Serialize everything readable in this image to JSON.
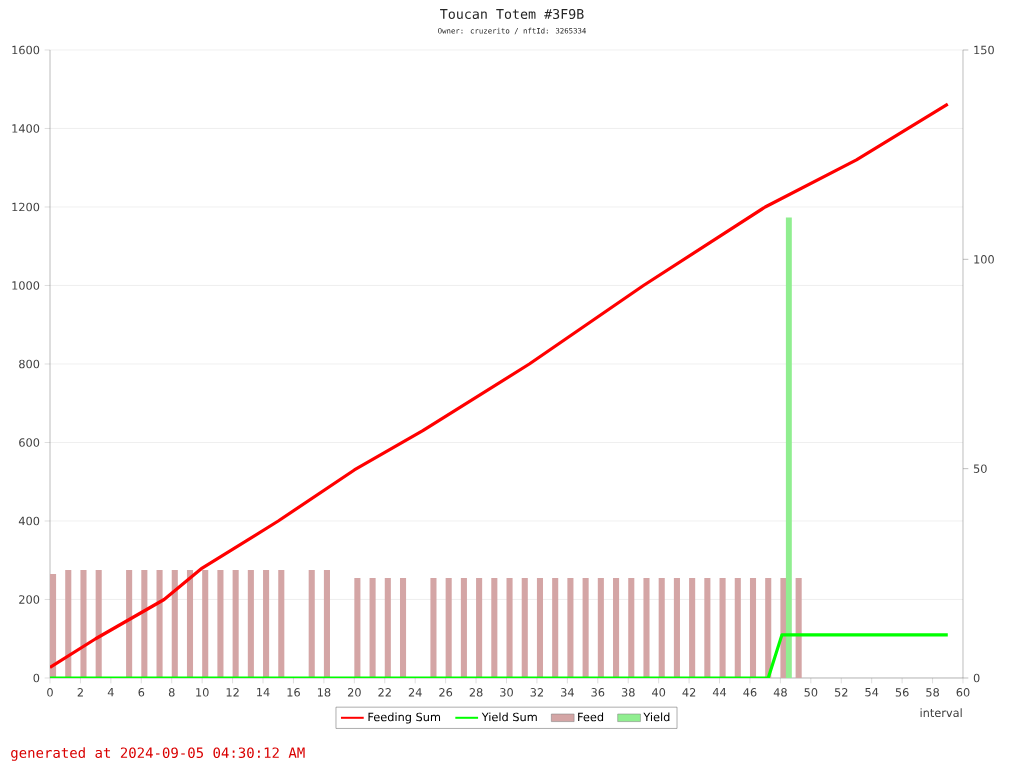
{
  "chart_data": {
    "type": "bar",
    "title": "Toucan Totem #3F9B",
    "subtitle": "Owner: cruzerito / nftId: 3265334",
    "xlabel": "interval",
    "annotations": [
      "generated at 2024-09-05 04:30:12 AM"
    ],
    "xlim": [
      0,
      60
    ],
    "xticks": [
      0,
      2,
      4,
      6,
      8,
      10,
      12,
      14,
      16,
      18,
      20,
      22,
      24,
      26,
      28,
      30,
      32,
      34,
      36,
      38,
      40,
      42,
      44,
      46,
      48,
      50,
      52,
      54,
      56,
      58,
      60
    ],
    "ylim": [
      0,
      1600
    ],
    "yticks": [
      0,
      200,
      400,
      600,
      800,
      1000,
      1200,
      1400,
      1600
    ],
    "y2lim": [
      0,
      150
    ],
    "y2ticks": [
      0,
      50,
      100,
      150
    ],
    "grid": "y",
    "legend": "bottom",
    "series": [
      {
        "name": "Feeding Sum",
        "type": "line",
        "color": "#ff0000",
        "x": [
          0,
          3,
          7.5,
          10,
          15,
          20,
          24.5,
          31.5,
          39,
          47,
          53,
          59
        ],
        "values": [
          27,
          100,
          200,
          280,
          400,
          530,
          630,
          800,
          1000,
          1200,
          1320,
          1462
        ]
      },
      {
        "name": "Yield Sum",
        "type": "line",
        "color": "#00ff00",
        "axis": "y2",
        "x": [
          0,
          47.2,
          48.1,
          59
        ],
        "values": [
          0,
          0,
          10.3,
          10.3
        ]
      },
      {
        "name": "Feed",
        "color": "#d4a5a5",
        "x": [
          0.2,
          1.2,
          2.2,
          3.2,
          5.2,
          6.2,
          7.2,
          8.2,
          9.2,
          10.2,
          11.2,
          12.2,
          13.2,
          14.2,
          15.2,
          17.2,
          18.2,
          20.2,
          21.2,
          22.2,
          23.2,
          25.2,
          26.2,
          27.2,
          28.2,
          29.2,
          30.2,
          31.2,
          32.2,
          33.2,
          34.2,
          35.2,
          36.2,
          37.2,
          38.2,
          39.2,
          40.2,
          41.2,
          42.2,
          43.2,
          44.2,
          45.2,
          46.2,
          47.2,
          48.2,
          49.2
        ],
        "values": [
          265,
          275,
          275,
          275,
          275,
          275,
          275,
          275,
          275,
          275,
          275,
          275,
          275,
          275,
          275,
          275,
          275,
          255,
          255,
          255,
          255,
          255,
          255,
          255,
          255,
          255,
          255,
          255,
          255,
          255,
          255,
          255,
          255,
          255,
          255,
          255,
          255,
          255,
          255,
          255,
          255,
          255,
          255,
          255,
          255,
          255
        ]
      },
      {
        "name": "Yield",
        "color": "#90ee90",
        "axis": "y2",
        "x": [
          48.55
        ],
        "values": [
          110
        ]
      }
    ]
  }
}
